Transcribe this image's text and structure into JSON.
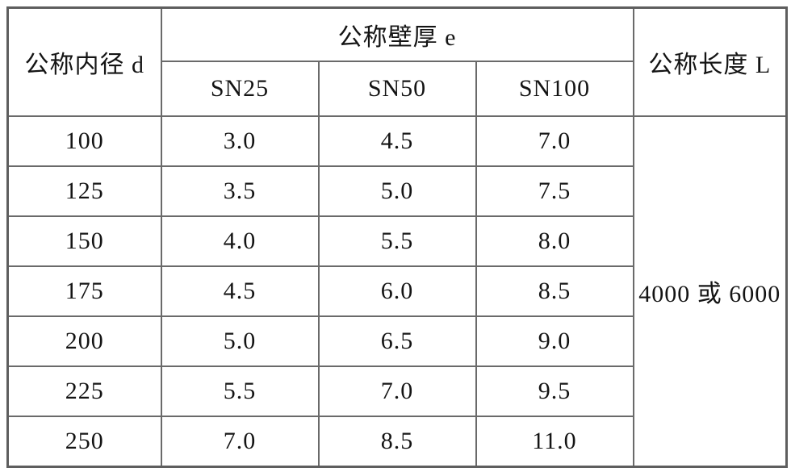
{
  "page": {
    "background_color": "#ffffff",
    "border_color": "#6a6a6a",
    "text_color": "#141414"
  },
  "table": {
    "header": {
      "inner_diameter": "公称内径 d",
      "wall_thickness": "公称壁厚 e",
      "length": "公称长度 L",
      "sn": [
        "SN25",
        "SN50",
        "SN100"
      ]
    },
    "rows": [
      {
        "d": "100",
        "sn25": "3.0",
        "sn50": "4.5",
        "sn100": "7.0"
      },
      {
        "d": "125",
        "sn25": "3.5",
        "sn50": "5.0",
        "sn100": "7.5"
      },
      {
        "d": "150",
        "sn25": "4.0",
        "sn50": "5.5",
        "sn100": "8.0"
      },
      {
        "d": "175",
        "sn25": "4.5",
        "sn50": "6.0",
        "sn100": "8.5"
      },
      {
        "d": "200",
        "sn25": "5.0",
        "sn50": "6.5",
        "sn100": "9.0"
      },
      {
        "d": "225",
        "sn25": "5.5",
        "sn50": "7.0",
        "sn100": "9.5"
      },
      {
        "d": "250",
        "sn25": "7.0",
        "sn50": "8.5",
        "sn100": "11.0"
      }
    ],
    "length_value": "4000 或 6000"
  },
  "chart_data": {
    "type": "table",
    "title": "",
    "header_row_1": [
      "公称内径 d",
      "公称壁厚 e",
      "公称长度 L"
    ],
    "header_row_2": [
      "SN25",
      "SN50",
      "SN100"
    ],
    "categories": [
      "100",
      "125",
      "150",
      "175",
      "200",
      "225",
      "250"
    ],
    "series": [
      {
        "name": "SN25",
        "values": [
          3.0,
          3.5,
          4.0,
          4.5,
          5.0,
          5.5,
          7.0
        ]
      },
      {
        "name": "SN50",
        "values": [
          4.5,
          5.0,
          5.5,
          6.0,
          6.5,
          7.0,
          8.5
        ]
      },
      {
        "name": "SN100",
        "values": [
          7.0,
          7.5,
          8.0,
          8.5,
          9.0,
          9.5,
          11.0
        ]
      }
    ],
    "shared_length_value": "4000 或 6000"
  }
}
